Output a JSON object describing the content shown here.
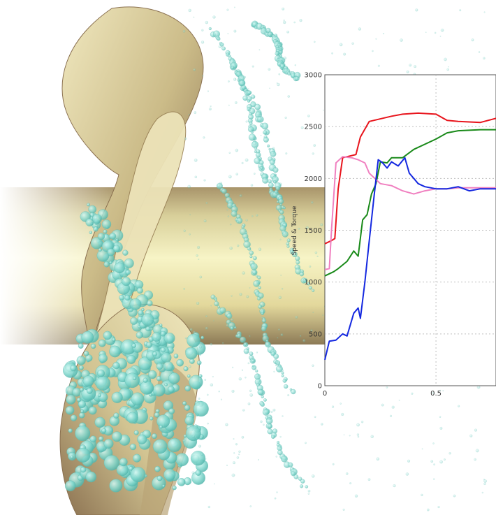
{
  "colors": {
    "shaft_light": "#f4f0b8",
    "shaft_dark": "#9c8a62",
    "blade_light": "#e4dcae",
    "blade_dark": "#8c7250",
    "bubble": "#7fd6cc",
    "grid": "#bfbfbf"
  },
  "illustration": {
    "subject": "propeller-with-cavitation-bubbles",
    "icons": [
      "propeller-blade-icon",
      "shaft-icon",
      "bubble-cloud-icon"
    ]
  },
  "chart_data": {
    "type": "line",
    "title": "",
    "xlabel": "",
    "ylabel": "Speed & Torque",
    "xlim": [
      0,
      0.77
    ],
    "ylim": [
      0,
      3000
    ],
    "x_ticks": [
      "0",
      "0.5"
    ],
    "y_ticks": [
      "0",
      "500",
      "1000",
      "1500",
      "2000",
      "2500",
      "3000"
    ],
    "grid": true,
    "series": [
      {
        "color": "#e8141c",
        "x": [
          0.0,
          0.03,
          0.045,
          0.06,
          0.08,
          0.12,
          0.14,
          0.16,
          0.2,
          0.26,
          0.3,
          0.35,
          0.42,
          0.5,
          0.55,
          0.6,
          0.7,
          0.77
        ],
        "y": [
          1370,
          1400,
          1420,
          1900,
          2200,
          2220,
          2230,
          2400,
          2550,
          2580,
          2600,
          2620,
          2630,
          2620,
          2560,
          2550,
          2540,
          2580
        ]
      },
      {
        "color": "#1a8a1a",
        "x": [
          0.0,
          0.04,
          0.06,
          0.1,
          0.13,
          0.15,
          0.17,
          0.19,
          0.21,
          0.23,
          0.25,
          0.28,
          0.3,
          0.35,
          0.4,
          0.5,
          0.55,
          0.6,
          0.7,
          0.77
        ],
        "y": [
          1060,
          1100,
          1130,
          1200,
          1300,
          1250,
          1600,
          1650,
          1850,
          1950,
          2160,
          2150,
          2200,
          2200,
          2280,
          2380,
          2440,
          2460,
          2470,
          2470
        ]
      },
      {
        "color": "#f080c0",
        "x": [
          0.0,
          0.02,
          0.03,
          0.05,
          0.08,
          0.12,
          0.15,
          0.18,
          0.2,
          0.25,
          0.3,
          0.35,
          0.4,
          0.45,
          0.5,
          0.55,
          0.6,
          0.7,
          0.77
        ],
        "y": [
          1120,
          1130,
          1500,
          2150,
          2210,
          2200,
          2180,
          2150,
          2050,
          1950,
          1930,
          1880,
          1850,
          1880,
          1900,
          1900,
          1910,
          1910,
          1910
        ]
      },
      {
        "color": "#1428e0",
        "x": [
          0.0,
          0.02,
          0.05,
          0.08,
          0.1,
          0.13,
          0.15,
          0.16,
          0.18,
          0.2,
          0.22,
          0.24,
          0.26,
          0.28,
          0.3,
          0.33,
          0.36,
          0.38,
          0.4,
          0.42,
          0.45,
          0.5,
          0.55,
          0.6,
          0.65,
          0.7,
          0.77
        ],
        "y": [
          250,
          430,
          440,
          500,
          480,
          700,
          750,
          650,
          1000,
          1400,
          1800,
          2180,
          2150,
          2100,
          2160,
          2120,
          2200,
          2050,
          2000,
          1950,
          1920,
          1900,
          1900,
          1920,
          1880,
          1900,
          1900
        ]
      }
    ]
  }
}
